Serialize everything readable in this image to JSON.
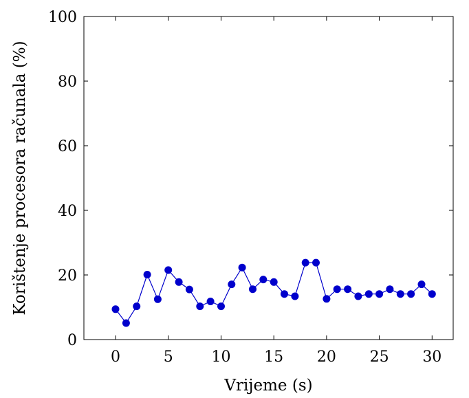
{
  "chart_data": {
    "type": "line",
    "xlabel": "Vrijeme (s)",
    "ylabel": "Korištenje procesora računala (%)",
    "xlim": [
      -3,
      32
    ],
    "ylim": [
      0,
      100
    ],
    "xticks": [
      0,
      5,
      10,
      15,
      20,
      25,
      30
    ],
    "yticks": [
      0,
      20,
      40,
      60,
      80,
      100
    ],
    "xtick_labels": [
      "0",
      "5",
      "10",
      "15",
      "20",
      "25",
      "30"
    ],
    "ytick_labels": [
      "0",
      "20",
      "40",
      "60",
      "80",
      "100"
    ],
    "grid": false,
    "color": "#0000cc",
    "series": [
      {
        "x": [
          0,
          1,
          2,
          3,
          4,
          5,
          6,
          7,
          8,
          9,
          10,
          11,
          12,
          13,
          14,
          15,
          16,
          17,
          18,
          19,
          20,
          21,
          22,
          23,
          24,
          25,
          26,
          27,
          28,
          29,
          30
        ],
        "values": [
          9.4,
          5.1,
          10.3,
          20.1,
          12.5,
          21.5,
          17.8,
          15.5,
          10.3,
          11.8,
          10.3,
          17.1,
          22.3,
          15.6,
          18.6,
          17.8,
          14.1,
          13.4,
          23.8,
          23.8,
          12.6,
          15.6,
          15.6,
          13.4,
          14.1,
          14.1,
          15.6,
          14.1,
          14.1,
          17.1,
          14.1
        ]
      }
    ]
  }
}
